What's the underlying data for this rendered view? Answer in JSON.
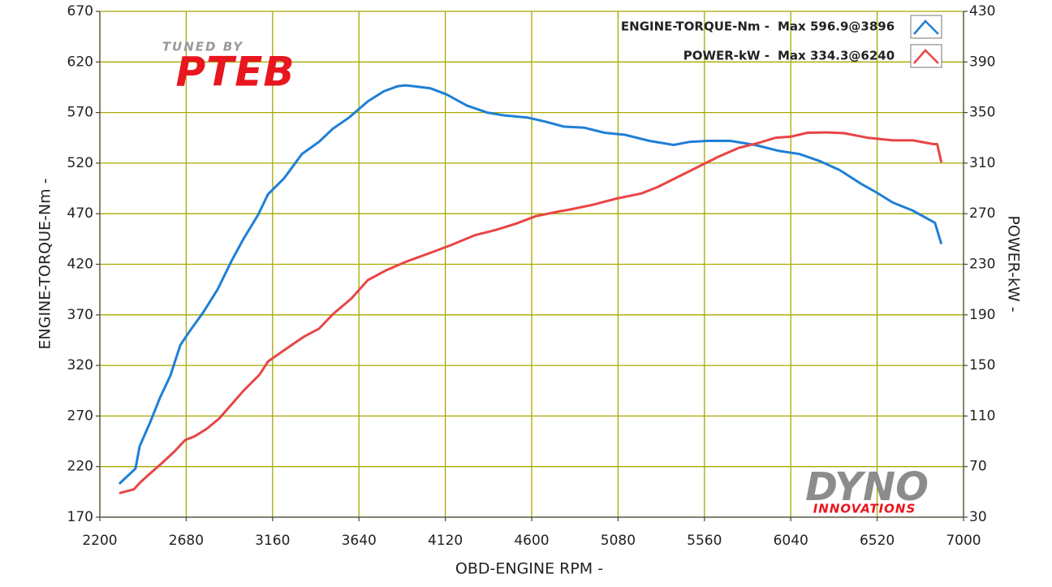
{
  "chart_data": {
    "type": "line",
    "x_label": "OBD-ENGINE RPM -",
    "y_label": "ENGINE-TORQUE-Nm -",
    "y2_label": "POWER-kW -",
    "xlim": [
      2200,
      7000
    ],
    "xticks": [
      2200,
      2680,
      3160,
      3640,
      4120,
      4600,
      5080,
      5560,
      6040,
      6520,
      7000
    ],
    "ylim": [
      170,
      670
    ],
    "yticks": [
      170,
      220,
      270,
      320,
      370,
      420,
      470,
      520,
      570,
      620,
      670
    ],
    "y2lim": [
      30,
      430
    ],
    "y2ticks": [
      30,
      70,
      110,
      150,
      190,
      230,
      270,
      310,
      350,
      390,
      430
    ],
    "grid": true,
    "legend": "upper right",
    "logos": {
      "top_small": "TUNED BY",
      "top_big": "PTEB",
      "bottom_big": "DYNO",
      "bottom_small": "INNOVATIONS"
    },
    "series": [
      {
        "name": "ENGINE-TORQUE-Nm -",
        "max_label": "Max 596.9@3896",
        "color": "#1f7fd6",
        "axis": "y",
        "x": [
          2308,
          2398,
          2421,
          2480,
          2534,
          2592,
          2647,
          2700,
          2773,
          2854,
          2931,
          2998,
          3080,
          3134,
          3224,
          3323,
          3418,
          3495,
          3585,
          3689,
          3779,
          3855,
          3896,
          3946,
          4036,
          4126,
          4239,
          4352,
          4451,
          4577,
          4676,
          4780,
          4893,
          5005,
          5118,
          5254,
          5389,
          5479,
          5578,
          5704,
          5840,
          5975,
          6088,
          6201,
          6313,
          6426,
          6516,
          6607,
          6719,
          6841,
          6877
        ],
        "values": [
          203,
          218,
          240,
          264,
          288,
          310,
          340,
          354,
          372,
          395,
          423,
          445,
          469,
          489,
          505,
          529,
          541,
          554,
          565,
          581,
          591,
          596,
          596.9,
          596,
          594,
          588,
          577,
          570,
          567,
          565,
          561,
          556,
          555,
          550,
          548,
          542,
          538,
          541,
          542,
          542,
          538,
          532,
          529,
          522,
          513,
          500,
          491,
          481,
          473,
          461,
          440
        ]
      },
      {
        "name": "POWER-kW -",
        "max_label": "Max 334.3@6240",
        "color": "#e84545",
        "axis": "y2",
        "x": [
          2308,
          2389,
          2421,
          2480,
          2547,
          2615,
          2674,
          2728,
          2795,
          2863,
          2931,
          2998,
          3089,
          3134,
          3224,
          3337,
          3418,
          3495,
          3598,
          3689,
          3788,
          3901,
          4036,
          4149,
          4284,
          4397,
          4510,
          4622,
          4758,
          4803,
          4938,
          5073,
          5209,
          5299,
          5412,
          5524,
          5637,
          5750,
          5862,
          5953,
          6043,
          6133,
          6240,
          6336,
          6471,
          6607,
          6719,
          6832,
          6854,
          6877
        ],
        "values": [
          49,
          52,
          57,
          64.7,
          73,
          82,
          91,
          94,
          100,
          108,
          119,
          130,
          143,
          153,
          162,
          173,
          179,
          190.5,
          203,
          217.5,
          225,
          232,
          239,
          245,
          253,
          257,
          262,
          268,
          272,
          273,
          277,
          282,
          286,
          291,
          299,
          307,
          315,
          322,
          326,
          330,
          331,
          334,
          334.3,
          333.7,
          330,
          328,
          328,
          325,
          325,
          310.6
        ]
      }
    ]
  }
}
